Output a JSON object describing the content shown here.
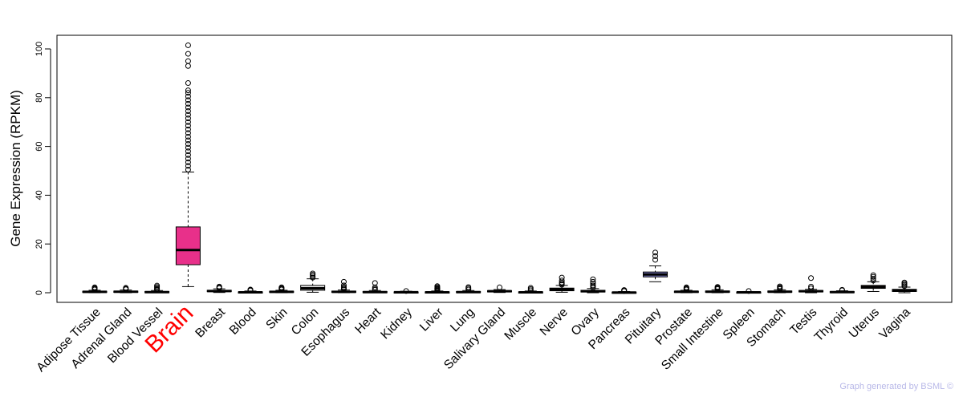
{
  "chart_data": {
    "type": "boxplot",
    "ylabel": "Gene Expression (RPKM)",
    "ylim": [
      -3,
      105
    ],
    "yticks": [
      0,
      20,
      40,
      60,
      80,
      100
    ],
    "highlight": {
      "category": "Brain",
      "color": "#ff0000"
    },
    "categories": [
      {
        "name": "Adipose Tissue",
        "color": "#e8e8e8",
        "min": 0.0,
        "q1": 0.15,
        "median": 0.35,
        "q3": 0.6,
        "max": 1.0,
        "outliers": [
          1.3,
          1.6,
          1.9,
          2.2
        ]
      },
      {
        "name": "Adrenal Gland",
        "color": "#e8e8e8",
        "min": 0.0,
        "q1": 0.2,
        "median": 0.4,
        "q3": 0.65,
        "max": 1.1,
        "outliers": [
          1.4,
          1.7,
          2.0
        ]
      },
      {
        "name": "Blood Vessel",
        "color": "#e8e8e8",
        "min": 0.0,
        "q1": 0.1,
        "median": 0.25,
        "q3": 0.5,
        "max": 0.9,
        "outliers": [
          1.2,
          1.5,
          1.9,
          2.4,
          2.9
        ]
      },
      {
        "name": "Brain",
        "color": "#e8308a",
        "min": 2.5,
        "q1": 11.5,
        "median": 17.5,
        "q3": 27.0,
        "max": 49.5,
        "outliers": [
          50.5,
          52,
          53.5,
          55,
          56.5,
          58,
          59.5,
          61,
          62.5,
          64,
          65.5,
          67,
          68.5,
          70,
          71.5,
          73,
          74.5,
          76,
          77.5,
          79,
          80.5,
          82,
          83,
          86,
          93,
          95,
          98,
          101.5
        ]
      },
      {
        "name": "Breast",
        "color": "#e8e8e8",
        "min": 0.1,
        "q1": 0.45,
        "median": 0.7,
        "q3": 1.0,
        "max": 1.6,
        "outliers": [
          1.9,
          2.2,
          2.5
        ]
      },
      {
        "name": "Blood",
        "color": "#e8e8e8",
        "min": 0.0,
        "q1": 0.05,
        "median": 0.15,
        "q3": 0.35,
        "max": 0.7,
        "outliers": [
          0.9,
          1.1,
          1.3
        ]
      },
      {
        "name": "Skin",
        "color": "#e8e8e8",
        "min": 0.0,
        "q1": 0.15,
        "median": 0.35,
        "q3": 0.6,
        "max": 1.0,
        "outliers": [
          1.3,
          1.6,
          1.9,
          2.2
        ]
      },
      {
        "name": "Colon",
        "color": "#e8e8e8",
        "min": 0.2,
        "q1": 1.0,
        "median": 1.8,
        "q3": 3.0,
        "max": 5.7,
        "outliers": [
          6.2,
          6.8,
          7.4,
          7.9
        ]
      },
      {
        "name": "Esophagus",
        "color": "#e8e8e8",
        "min": 0.0,
        "q1": 0.15,
        "median": 0.35,
        "q3": 0.65,
        "max": 1.1,
        "outliers": [
          1.4,
          1.8,
          2.3,
          3.0,
          4.5
        ]
      },
      {
        "name": "Heart",
        "color": "#e8e8e8",
        "min": 0.0,
        "q1": 0.1,
        "median": 0.25,
        "q3": 0.5,
        "max": 0.9,
        "outliers": [
          1.2,
          1.6,
          2.2,
          4.0
        ]
      },
      {
        "name": "Kidney",
        "color": "#e8e8e8",
        "min": 0.0,
        "q1": 0.1,
        "median": 0.2,
        "q3": 0.35,
        "max": 0.6,
        "outliers": [
          0.7
        ]
      },
      {
        "name": "Liver",
        "color": "#e8e8e8",
        "min": 0.0,
        "q1": 0.05,
        "median": 0.15,
        "q3": 0.35,
        "max": 0.7,
        "outliers": [
          1.0,
          1.3,
          1.6,
          1.9,
          2.3,
          2.7
        ]
      },
      {
        "name": "Lung",
        "color": "#e8e8e8",
        "min": 0.0,
        "q1": 0.1,
        "median": 0.25,
        "q3": 0.5,
        "max": 0.9,
        "outliers": [
          1.3,
          1.8,
          2.3
        ]
      },
      {
        "name": "Salivary Gland",
        "color": "#e8e8e8",
        "min": 0.1,
        "q1": 0.4,
        "median": 0.6,
        "q3": 0.85,
        "max": 1.3,
        "outliers": [
          2.2
        ]
      },
      {
        "name": "Muscle",
        "color": "#e8e8e8",
        "min": 0.0,
        "q1": 0.05,
        "median": 0.15,
        "q3": 0.35,
        "max": 0.7,
        "outliers": [
          1.0,
          1.5,
          2.0
        ]
      },
      {
        "name": "Nerve",
        "color": "#e8e8e8",
        "min": 0.2,
        "q1": 0.8,
        "median": 1.3,
        "q3": 1.9,
        "max": 3.0,
        "outliers": [
          3.3,
          3.7,
          4.2,
          5.0,
          6.2
        ]
      },
      {
        "name": "Ovary",
        "color": "#e8e8e8",
        "min": 0.0,
        "q1": 0.3,
        "median": 0.6,
        "q3": 1.0,
        "max": 1.7,
        "outliers": [
          2.0,
          2.5,
          3.0,
          3.8,
          4.5,
          5.5
        ]
      },
      {
        "name": "Pancreas",
        "color": "#e8e8e8",
        "min": 0.0,
        "q1": 0.05,
        "median": 0.1,
        "q3": 0.25,
        "max": 0.5,
        "outliers": [
          0.7,
          0.9,
          1.1
        ]
      },
      {
        "name": "Pituitary",
        "color": "#8080c8",
        "min": 4.5,
        "q1": 6.5,
        "median": 7.5,
        "q3": 8.5,
        "max": 11.0,
        "outliers": [
          13.5,
          15.0,
          16.5
        ]
      },
      {
        "name": "Prostate",
        "color": "#e8e8e8",
        "min": 0.0,
        "q1": 0.2,
        "median": 0.4,
        "q3": 0.6,
        "max": 1.0,
        "outliers": [
          1.3,
          1.6,
          1.9,
          2.2
        ]
      },
      {
        "name": "Small Intestine",
        "color": "#e8e8e8",
        "min": 0.0,
        "q1": 0.2,
        "median": 0.4,
        "q3": 0.7,
        "max": 1.2,
        "outliers": [
          1.5,
          1.8,
          2.1,
          2.4
        ]
      },
      {
        "name": "Spleen",
        "color": "#e8e8e8",
        "min": 0.0,
        "q1": 0.05,
        "median": 0.15,
        "q3": 0.3,
        "max": 0.5,
        "outliers": [
          0.7
        ]
      },
      {
        "name": "Stomach",
        "color": "#e8e8e8",
        "min": 0.0,
        "q1": 0.2,
        "median": 0.4,
        "q3": 0.7,
        "max": 1.2,
        "outliers": [
          1.5,
          1.8,
          2.2,
          2.6
        ]
      },
      {
        "name": "Testis",
        "color": "#e8e8e8",
        "min": 0.0,
        "q1": 0.35,
        "median": 0.6,
        "q3": 0.9,
        "max": 1.4,
        "outliers": [
          1.8,
          2.5,
          6.0
        ]
      },
      {
        "name": "Thyroid",
        "color": "#e8e8e8",
        "min": 0.0,
        "q1": 0.1,
        "median": 0.25,
        "q3": 0.5,
        "max": 0.8,
        "outliers": [
          1.0,
          1.2
        ]
      },
      {
        "name": "Uterus",
        "color": "#a05a1e",
        "min": 0.5,
        "q1": 1.8,
        "median": 2.4,
        "q3": 3.0,
        "max": 4.5,
        "outliers": [
          5.0,
          5.8,
          6.5,
          7.2
        ]
      },
      {
        "name": "Vagina",
        "color": "#e8e8e8",
        "min": 0.0,
        "q1": 0.5,
        "median": 0.9,
        "q3": 1.4,
        "max": 2.3,
        "outliers": [
          2.7,
          3.2,
          3.7,
          4.2
        ]
      }
    ]
  },
  "footer": {
    "credit": "Graph generated by BSML ©"
  }
}
